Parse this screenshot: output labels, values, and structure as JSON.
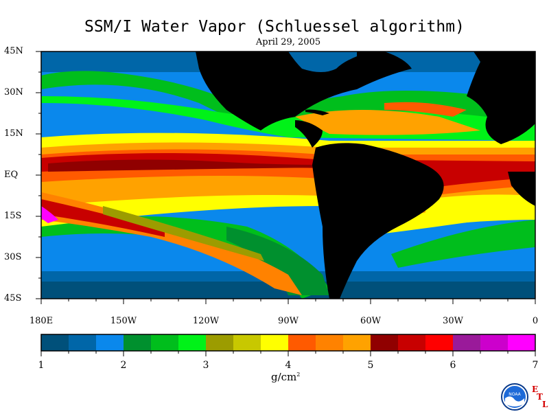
{
  "title": "SSM/I Water Vapor (Schluessel algorithm)",
  "subtitle": "April 29, 2005",
  "lat_labels": [
    "45N",
    "30N",
    "15N",
    "EQ",
    "15S",
    "30S",
    "45S"
  ],
  "lon_labels": [
    "180E",
    "150W",
    "120W",
    "90W",
    "60W",
    "30W",
    "0"
  ],
  "colorbar": {
    "colors": [
      "#00507a",
      "#0066a8",
      "#0a88ec",
      "#00902e",
      "#00be1c",
      "#00f218",
      "#9c9c00",
      "#c8c800",
      "#ffff00",
      "#ff5a00",
      "#ff8200",
      "#ffa200",
      "#900000",
      "#c80000",
      "#ff0000",
      "#9a1a9a",
      "#cc00cc",
      "#ff00ff"
    ],
    "tick_labels": [
      "1",
      "2",
      "3",
      "4",
      "5",
      "6",
      "7"
    ],
    "units_base": "g/cm",
    "units_exp": "2"
  },
  "logo": {
    "text": "NOAA",
    "etl": [
      "E",
      "T",
      "L"
    ]
  }
}
